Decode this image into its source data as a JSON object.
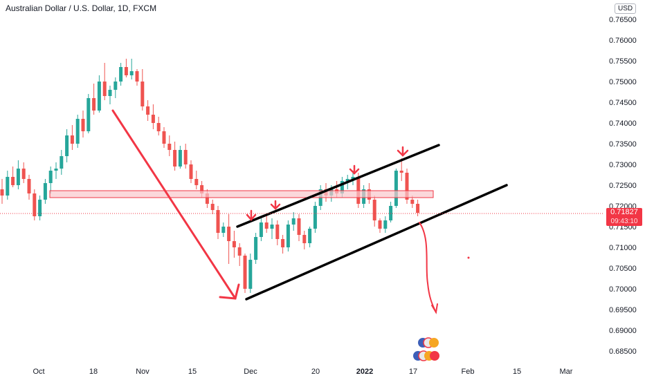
{
  "chart_data": {
    "type": "candlestick",
    "title": "Australian Dollar / U.S. Dollar, 1D, FXCM",
    "currency": "USD",
    "y_ticks": [
      "0.76500",
      "0.76000",
      "0.75500",
      "0.75000",
      "0.74500",
      "0.74000",
      "0.73500",
      "0.73000",
      "0.72500",
      "0.72000",
      "0.71500",
      "0.71000",
      "0.70500",
      "0.70000",
      "0.69500",
      "0.69000",
      "0.68500"
    ],
    "ylim": [
      0.683,
      0.768
    ],
    "x_ticks": [
      "Oct",
      "18",
      "Nov",
      "15",
      "Dec",
      "20",
      "2022",
      "17",
      "Feb",
      "15",
      "Mar"
    ],
    "last_price": "0.71827",
    "countdown": "09:43:10",
    "colors": {
      "up": "#26a69a",
      "down": "#ef5350",
      "annotation": "#f23645",
      "trendline": "#000000"
    },
    "candles": [
      [
        0.724,
        0.7265,
        0.7205,
        0.7225
      ],
      [
        0.7225,
        0.7285,
        0.7215,
        0.727
      ],
      [
        0.727,
        0.7295,
        0.7245,
        0.725
      ],
      [
        0.725,
        0.731,
        0.724,
        0.729
      ],
      [
        0.729,
        0.7305,
        0.7255,
        0.7265
      ],
      [
        0.7265,
        0.7275,
        0.7215,
        0.723
      ],
      [
        0.723,
        0.724,
        0.7165,
        0.7175
      ],
      [
        0.7175,
        0.7225,
        0.7165,
        0.7215
      ],
      [
        0.7215,
        0.7265,
        0.7205,
        0.7255
      ],
      [
        0.7255,
        0.7295,
        0.723,
        0.7285
      ],
      [
        0.7285,
        0.7305,
        0.7265,
        0.729
      ],
      [
        0.729,
        0.7335,
        0.7275,
        0.732
      ],
      [
        0.732,
        0.7385,
        0.7305,
        0.737
      ],
      [
        0.737,
        0.7395,
        0.7335,
        0.735
      ],
      [
        0.735,
        0.742,
        0.734,
        0.741
      ],
      [
        0.741,
        0.743,
        0.7365,
        0.738
      ],
      [
        0.738,
        0.747,
        0.7375,
        0.746
      ],
      [
        0.746,
        0.7495,
        0.742,
        0.743
      ],
      [
        0.743,
        0.7515,
        0.7425,
        0.75
      ],
      [
        0.75,
        0.7545,
        0.7455,
        0.7465
      ],
      [
        0.7465,
        0.749,
        0.7445,
        0.748
      ],
      [
        0.748,
        0.751,
        0.746,
        0.75
      ],
      [
        0.75,
        0.7545,
        0.749,
        0.7535
      ],
      [
        0.7535,
        0.7555,
        0.751,
        0.7515
      ],
      [
        0.7515,
        0.7555,
        0.7505,
        0.7525
      ],
      [
        0.7525,
        0.753,
        0.749,
        0.75
      ],
      [
        0.75,
        0.753,
        0.743,
        0.744
      ],
      [
        0.744,
        0.7455,
        0.7405,
        0.742
      ],
      [
        0.742,
        0.7445,
        0.7385,
        0.74
      ],
      [
        0.74,
        0.7415,
        0.737,
        0.738
      ],
      [
        0.738,
        0.739,
        0.734,
        0.735
      ],
      [
        0.735,
        0.737,
        0.732,
        0.7335
      ],
      [
        0.7335,
        0.7355,
        0.7285,
        0.7295
      ],
      [
        0.7295,
        0.7345,
        0.729,
        0.7335
      ],
      [
        0.7335,
        0.735,
        0.729,
        0.73
      ],
      [
        0.73,
        0.731,
        0.7255,
        0.7265
      ],
      [
        0.7265,
        0.7285,
        0.724,
        0.725
      ],
      [
        0.725,
        0.726,
        0.722,
        0.723
      ],
      [
        0.723,
        0.724,
        0.7195,
        0.7205
      ],
      [
        0.7205,
        0.7215,
        0.718,
        0.719
      ],
      [
        0.719,
        0.72,
        0.712,
        0.7135
      ],
      [
        0.7135,
        0.716,
        0.7125,
        0.715
      ],
      [
        0.715,
        0.718,
        0.706,
        0.7115
      ],
      [
        0.7115,
        0.714,
        0.7075,
        0.71
      ],
      [
        0.71,
        0.711,
        0.7055,
        0.708
      ],
      [
        0.708,
        0.7085,
        0.699,
        0.7
      ],
      [
        0.7,
        0.7085,
        0.699,
        0.707
      ],
      [
        0.707,
        0.7135,
        0.706,
        0.7125
      ],
      [
        0.7125,
        0.717,
        0.7115,
        0.716
      ],
      [
        0.716,
        0.718,
        0.7135,
        0.7145
      ],
      [
        0.7145,
        0.717,
        0.712,
        0.7155
      ],
      [
        0.7155,
        0.7165,
        0.7105,
        0.712
      ],
      [
        0.712,
        0.713,
        0.7085,
        0.71
      ],
      [
        0.71,
        0.7165,
        0.709,
        0.7155
      ],
      [
        0.7155,
        0.7185,
        0.714,
        0.717
      ],
      [
        0.717,
        0.718,
        0.7115,
        0.713
      ],
      [
        0.713,
        0.714,
        0.7095,
        0.711
      ],
      [
        0.711,
        0.715,
        0.71,
        0.7145
      ],
      [
        0.7145,
        0.721,
        0.7135,
        0.72
      ],
      [
        0.72,
        0.725,
        0.719,
        0.724
      ],
      [
        0.724,
        0.7255,
        0.721,
        0.7225
      ],
      [
        0.7225,
        0.725,
        0.721,
        0.724
      ],
      [
        0.724,
        0.726,
        0.722,
        0.723
      ],
      [
        0.723,
        0.727,
        0.722,
        0.726
      ],
      [
        0.726,
        0.7275,
        0.724,
        0.7265
      ],
      [
        0.7265,
        0.7285,
        0.725,
        0.727
      ],
      [
        0.727,
        0.728,
        0.7195,
        0.7205
      ],
      [
        0.7205,
        0.725,
        0.7195,
        0.724
      ],
      [
        0.724,
        0.7255,
        0.7205,
        0.7215
      ],
      [
        0.7215,
        0.7225,
        0.715,
        0.7165
      ],
      [
        0.7165,
        0.717,
        0.7135,
        0.7145
      ],
      [
        0.7145,
        0.7175,
        0.7135,
        0.7165
      ],
      [
        0.7165,
        0.721,
        0.716,
        0.72
      ],
      [
        0.72,
        0.729,
        0.7195,
        0.7285
      ],
      [
        0.7285,
        0.7315,
        0.726,
        0.728
      ],
      [
        0.728,
        0.729,
        0.7205,
        0.7215
      ],
      [
        0.7215,
        0.7225,
        0.7195,
        0.7205
      ],
      [
        0.7205,
        0.7215,
        0.7175,
        0.7183
      ]
    ]
  }
}
